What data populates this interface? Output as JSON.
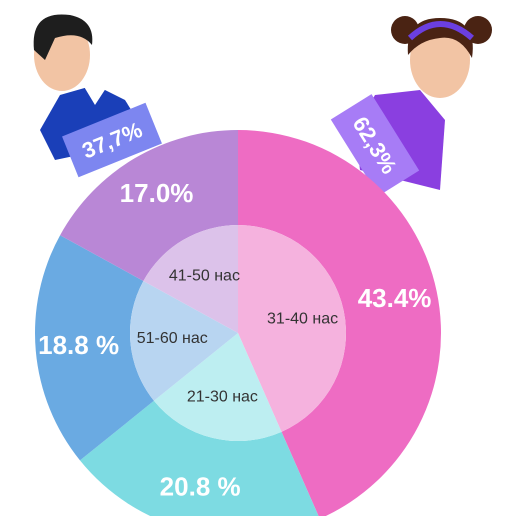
{
  "chart_data": {
    "type": "pie",
    "categories": [
      "31-40 нас",
      "21-30 нас",
      "51-60 нас",
      "41-50 нас"
    ],
    "values": [
      43.4,
      20.8,
      18.8,
      17.0
    ],
    "value_labels": [
      "43.4%",
      "20.8 %",
      "18.8 %",
      "17.0%"
    ],
    "colors": [
      "#ee6cc3",
      "#7ddbe2",
      "#6aaae2",
      "#b987d6"
    ],
    "inner_colors": [
      "#f5b2de",
      "#bdeef1",
      "#b8d5f1",
      "#dcc2ea"
    ],
    "annotations": [
      "37,7%",
      "62,3%"
    ]
  }
}
